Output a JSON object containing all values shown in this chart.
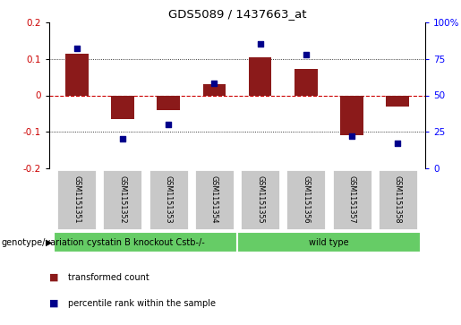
{
  "title": "GDS5089 / 1437663_at",
  "samples": [
    "GSM1151351",
    "GSM1151352",
    "GSM1151353",
    "GSM1151354",
    "GSM1151355",
    "GSM1151356",
    "GSM1151357",
    "GSM1151358"
  ],
  "transformed_count": [
    0.115,
    -0.065,
    -0.04,
    0.03,
    0.105,
    0.072,
    -0.11,
    -0.03
  ],
  "percentile_rank": [
    82,
    20,
    30,
    58,
    85,
    78,
    22,
    17
  ],
  "ylim_left": [
    -0.2,
    0.2
  ],
  "ylim_right": [
    0,
    100
  ],
  "bar_color": "#8B1A1A",
  "dot_color": "#00008B",
  "group1_label": "cystatin B knockout Cstb-/-",
  "group1_samples": 4,
  "group2_label": "wild type",
  "group2_samples": 4,
  "group_color": "#66CC66",
  "group_label_prefix": "genotype/variation",
  "legend_bar": "transformed count",
  "legend_dot": "percentile rank within the sample",
  "hline_color": "#CC0000",
  "dotted_color": "black",
  "sample_box_color": "#C8C8C8"
}
